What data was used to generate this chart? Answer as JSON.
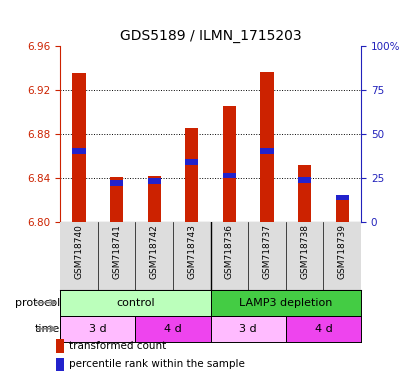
{
  "title": "GDS5189 / ILMN_1715203",
  "samples": [
    "GSM718740",
    "GSM718741",
    "GSM718742",
    "GSM718743",
    "GSM718736",
    "GSM718737",
    "GSM718738",
    "GSM718739"
  ],
  "bar_bottoms": [
    6.8,
    6.8,
    6.8,
    6.8,
    6.8,
    6.8,
    6.8,
    6.8
  ],
  "bar_tops": [
    6.935,
    6.841,
    6.842,
    6.885,
    6.905,
    6.936,
    6.852,
    6.825
  ],
  "blue_positions": [
    6.862,
    6.833,
    6.835,
    6.852,
    6.84,
    6.862,
    6.836,
    6.82
  ],
  "blue_heights": [
    0.005,
    0.005,
    0.005,
    0.005,
    0.005,
    0.005,
    0.005,
    0.005
  ],
  "ylim_left": [
    6.8,
    6.96
  ],
  "ylim_right": [
    0,
    100
  ],
  "yticks_left": [
    6.8,
    6.84,
    6.88,
    6.92,
    6.96
  ],
  "yticks_right": [
    0,
    25,
    50,
    75,
    100
  ],
  "ytick_labels_right": [
    "0",
    "25",
    "50",
    "75",
    "100%"
  ],
  "bar_color": "#CC2200",
  "blue_color": "#2222CC",
  "bg_color": "#FFFFFF",
  "protocol_row": {
    "groups": [
      {
        "label": "control",
        "start": 0,
        "end": 4,
        "color": "#BBFFBB"
      },
      {
        "label": "LAMP3 depletion",
        "start": 4,
        "end": 8,
        "color": "#44CC44"
      }
    ]
  },
  "time_row": {
    "groups": [
      {
        "label": "3 d",
        "start": 0,
        "end": 2,
        "color": "#FFBBFF"
      },
      {
        "label": "4 d",
        "start": 2,
        "end": 4,
        "color": "#EE44EE"
      },
      {
        "label": "3 d",
        "start": 4,
        "end": 6,
        "color": "#FFBBFF"
      },
      {
        "label": "4 d",
        "start": 6,
        "end": 8,
        "color": "#EE44EE"
      }
    ]
  },
  "legend_items": [
    {
      "label": "transformed count",
      "color": "#CC2200"
    },
    {
      "label": "percentile rank within the sample",
      "color": "#2222CC"
    }
  ],
  "left_axis_color": "#CC2200",
  "right_axis_color": "#2222BB",
  "title_fontsize": 10,
  "tick_fontsize": 7.5,
  "sample_fontsize": 6.5,
  "bar_width": 0.35
}
